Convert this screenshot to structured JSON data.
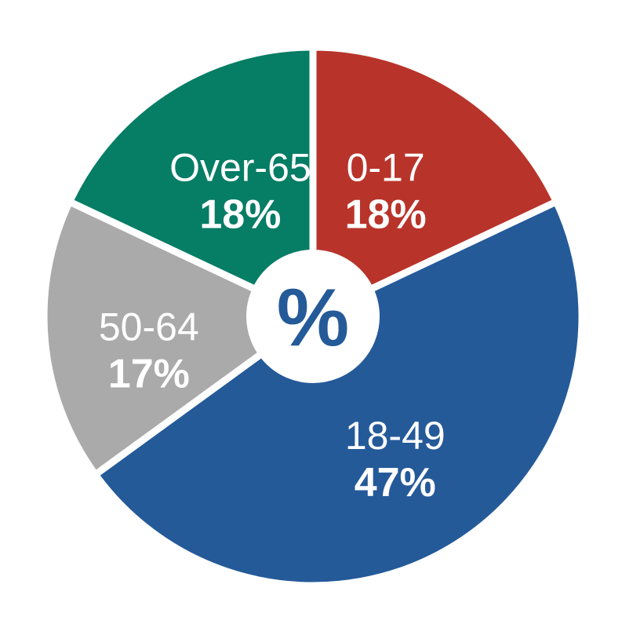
{
  "chart_data": {
    "type": "pie",
    "categories": [
      "0-17",
      "18-49",
      "50-64",
      "Over-65"
    ],
    "values": [
      18,
      47,
      17,
      18
    ],
    "data_labels": [
      "18%",
      "47%",
      "17%",
      "18%"
    ],
    "colors": [
      "#b8342b",
      "#255a99",
      "#aaaaaa",
      "#067d65"
    ],
    "center_label": "%",
    "center_label_color": "#255a99",
    "start_angle_deg": 0,
    "direction": "clockwise",
    "style": "donut-with-small-center-hole",
    "legend": "none"
  }
}
